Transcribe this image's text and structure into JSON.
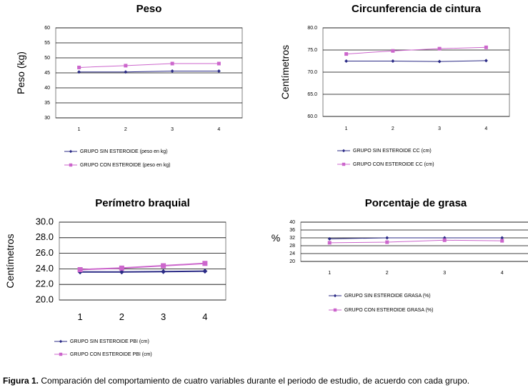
{
  "colors": {
    "series_sin": "#2b2b86",
    "series_con": "#cc66cc",
    "plot_bg": "#ffffff",
    "grid": "#000000"
  },
  "caption": {
    "label": "Figura 1.",
    "text": " Comparación del comportamiento de cuatro variables durante el periodo de estudio, de acuerdo con cada grupo."
  },
  "chart_data": [
    {
      "type": "line",
      "title": "Peso",
      "ylabel": "Peso (kg)",
      "xlabel": "",
      "categories": [
        "1",
        "2",
        "3",
        "4"
      ],
      "ylim": [
        30,
        60
      ],
      "yticks": [
        "30",
        "35",
        "40",
        "45",
        "50",
        "55",
        "60"
      ],
      "series": [
        {
          "name": "GRUPO SIN ESTEROIDE (peso en kg)",
          "values": [
            45.3,
            45.3,
            45.6,
            45.6
          ],
          "marker": "diamond"
        },
        {
          "name": "GRUPO CON ESTEROIDE (peso en kg)",
          "values": [
            46.8,
            47.4,
            48.1,
            48.1
          ],
          "marker": "square"
        }
      ]
    },
    {
      "type": "line",
      "title": "Circunferencia de cintura",
      "ylabel": "Centímetros",
      "xlabel": "",
      "categories": [
        "1",
        "2",
        "3",
        "4"
      ],
      "ylim": [
        60,
        80
      ],
      "yticks": [
        "60.0",
        "65.0",
        "70.0",
        "75.0",
        "80.0"
      ],
      "series": [
        {
          "name": "GRUPO SIN ESTEROIDE CC (cm)",
          "values": [
            72.5,
            72.5,
            72.4,
            72.6
          ],
          "marker": "diamond"
        },
        {
          "name": "GRUPO CON ESTEROIDE CC (cm)",
          "values": [
            74.1,
            74.8,
            75.3,
            75.6
          ],
          "marker": "square"
        }
      ]
    },
    {
      "type": "line",
      "title": "Perímetro braquial",
      "ylabel": "Centímetros",
      "xlabel": "",
      "categories": [
        "1",
        "2",
        "3",
        "4"
      ],
      "ylim": [
        20,
        30
      ],
      "yticks": [
        "20.0",
        "22.0",
        "24.0",
        "26.0",
        "28.0",
        "30.0"
      ],
      "series": [
        {
          "name": "GRUPO SIN ESTEROIDE PBI (cm)",
          "values": [
            23.6,
            23.6,
            23.65,
            23.7
          ],
          "marker": "diamond"
        },
        {
          "name": "GRUPO CON ESTEROIDE PBI (cm)",
          "values": [
            23.9,
            24.1,
            24.4,
            24.7
          ],
          "marker": "square"
        }
      ]
    },
    {
      "type": "line",
      "title": "Porcentaje de grasa",
      "ylabel": "%",
      "xlabel": "",
      "categories": [
        "1",
        "2",
        "3",
        "4"
      ],
      "ylim": [
        20,
        40
      ],
      "yticks": [
        "20",
        "24",
        "28",
        "32",
        "36",
        "40"
      ],
      "series": [
        {
          "name": "GRUPO SIN ESTEROIDE GRASA (%)",
          "values": [
            31.5,
            32.0,
            32.0,
            32.0
          ],
          "marker": "diamond"
        },
        {
          "name": "GRUPO CON ESTEROIDE GRASA (%)",
          "values": [
            29.5,
            29.8,
            30.8,
            30.5
          ],
          "marker": "square"
        }
      ]
    }
  ]
}
